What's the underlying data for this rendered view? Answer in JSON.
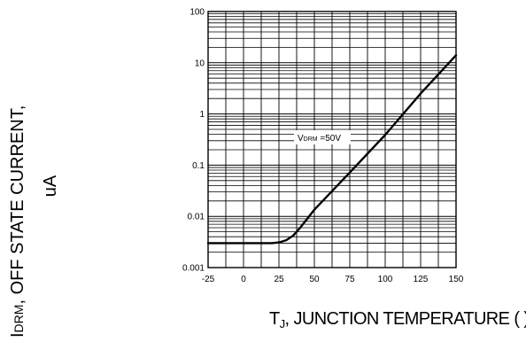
{
  "chart_data": {
    "type": "line",
    "title": "",
    "xlabel": {
      "prefix": "T",
      "subscript": "J",
      "rest": ", JUNCTION TEMPERATURE (   )"
    },
    "ylabel": {
      "line1_prefix": "I",
      "line1_subscript": "DRM",
      "line1_rest": ", OFF STATE CURRENT,",
      "line2": "uA"
    },
    "xlim": [
      -25,
      150
    ],
    "ylim": [
      0.001,
      100
    ],
    "y_scale": "log",
    "grid": true,
    "x_ticks": [
      "-25",
      "0",
      "25",
      "50",
      "75",
      "100",
      "125",
      "150"
    ],
    "y_ticks": [
      "100",
      "10",
      "1",
      "0.1",
      "0.01",
      "0.001"
    ],
    "annotation": {
      "prefix": "V",
      "subscript": "DRM",
      "rest": " =50V"
    },
    "series": [
      {
        "x": [
          -25,
          0,
          20,
          25,
          30,
          35,
          40,
          50,
          75,
          100,
          125,
          150
        ],
        "y": [
          0.003,
          0.003,
          0.003,
          0.0031,
          0.0034,
          0.0042,
          0.006,
          0.0135,
          0.072,
          0.39,
          2.5,
          14
        ]
      }
    ]
  }
}
